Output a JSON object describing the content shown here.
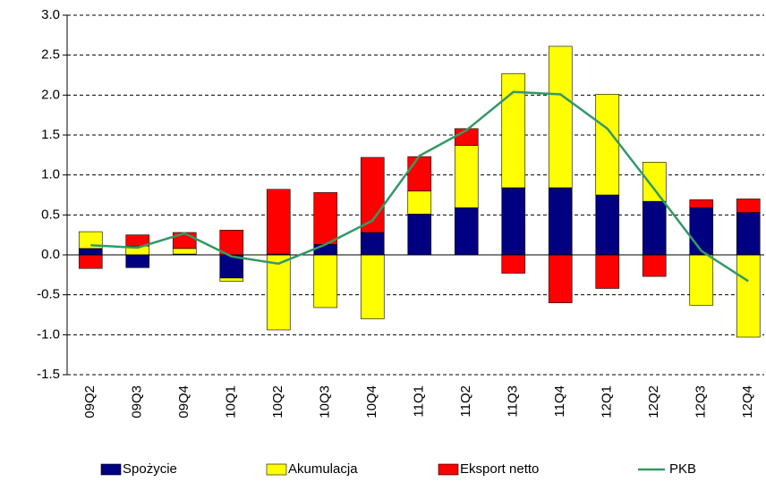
{
  "chart_data": {
    "type": "bar",
    "categories": [
      "09Q2",
      "09Q3",
      "09Q4",
      "10Q1",
      "10Q2",
      "10Q3",
      "10Q4",
      "11Q1",
      "11Q2",
      "11Q3",
      "11Q4",
      "12Q1",
      "12Q2",
      "12Q3",
      "12Q4"
    ],
    "series": [
      {
        "name": "Spożycie",
        "color": "#000080",
        "values": [
          0.08,
          -0.16,
          0.01,
          -0.29,
          0.01,
          0.13,
          0.28,
          0.51,
          0.59,
          0.84,
          0.84,
          0.75,
          0.67,
          0.59,
          0.53
        ]
      },
      {
        "name": "Akumulacja",
        "color": "#ffff00",
        "values": [
          0.21,
          0.11,
          0.07,
          -0.04,
          -0.94,
          -0.66,
          -0.8,
          0.29,
          0.78,
          1.43,
          1.77,
          1.26,
          0.49,
          -0.63,
          -1.03
        ]
      },
      {
        "name": "Eksport netto",
        "color": "#ff0000",
        "values": [
          -0.17,
          0.14,
          0.2,
          0.31,
          0.81,
          0.65,
          0.94,
          0.43,
          0.21,
          -0.23,
          -0.6,
          -0.42,
          -0.27,
          0.1,
          0.17
        ]
      },
      {
        "name": "PKB",
        "type": "line",
        "color": "#339966",
        "values": [
          0.12,
          0.09,
          0.27,
          -0.02,
          -0.11,
          0.13,
          0.43,
          1.24,
          1.56,
          2.04,
          2.01,
          1.58,
          0.82,
          0.05,
          -0.33
        ]
      }
    ],
    "stacked": true,
    "ylim": [
      -1.5,
      3.0
    ],
    "yticks": [
      {
        "value": -1.5,
        "label": "-1.5"
      },
      {
        "value": -1.0,
        "label": "-1.0"
      },
      {
        "value": -0.5,
        "label": "-0.5"
      },
      {
        "value": 0,
        "label": "0.0"
      },
      {
        "value": 0.5,
        "label": "0.5"
      },
      {
        "value": 1.0,
        "label": "1.0"
      },
      {
        "value": 1.5,
        "label": "1.5"
      },
      {
        "value": 2.0,
        "label": "2.0"
      },
      {
        "value": 2.5,
        "label": "2.5"
      },
      {
        "value": 3.0,
        "label": "3.0"
      }
    ],
    "grid": true,
    "legend": "bottom"
  }
}
